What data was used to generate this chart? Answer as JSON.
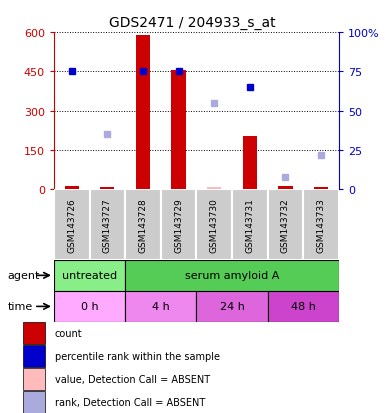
{
  "title": "GDS2471 / 204933_s_at",
  "samples": [
    "GSM143726",
    "GSM143727",
    "GSM143728",
    "GSM143729",
    "GSM143730",
    "GSM143731",
    "GSM143732",
    "GSM143733"
  ],
  "count_values": [
    15,
    8,
    590,
    455,
    10,
    205,
    12,
    8
  ],
  "count_absent": [
    false,
    false,
    false,
    false,
    true,
    false,
    false,
    false
  ],
  "percentile_values": [
    75,
    null,
    75,
    75,
    null,
    65,
    null,
    null
  ],
  "percentile_absent": [
    false,
    null,
    false,
    false,
    null,
    false,
    null,
    null
  ],
  "rank_absent_values": [
    null,
    35,
    null,
    null,
    55,
    null,
    8,
    22
  ],
  "ylim_left": [
    0,
    600
  ],
  "ylim_right": [
    0,
    100
  ],
  "yticks_left": [
    0,
    150,
    300,
    450,
    600
  ],
  "yticks_right": [
    0,
    25,
    50,
    75,
    100
  ],
  "ytick_labels_left": [
    "0",
    "150",
    "300",
    "450",
    "600"
  ],
  "ytick_labels_right": [
    "0",
    "25",
    "50",
    "75",
    "100%"
  ],
  "color_count": "#cc0000",
  "color_count_absent": "#ffbbbb",
  "color_percentile": "#0000cc",
  "color_rank_absent": "#aaaadd",
  "color_agent_untreated": "#88ee88",
  "color_agent_serum": "#55cc55",
  "color_time_0h": "#ffaaff",
  "color_time_4h": "#ee88ee",
  "color_time_24h": "#dd66dd",
  "color_time_48h": "#cc44cc",
  "color_sample_bg": "#cccccc",
  "legend_items": [
    {
      "color": "#cc0000",
      "label": "count"
    },
    {
      "color": "#0000cc",
      "label": "percentile rank within the sample"
    },
    {
      "color": "#ffbbbb",
      "label": "value, Detection Call = ABSENT"
    },
    {
      "color": "#aaaadd",
      "label": "rank, Detection Call = ABSENT"
    }
  ]
}
